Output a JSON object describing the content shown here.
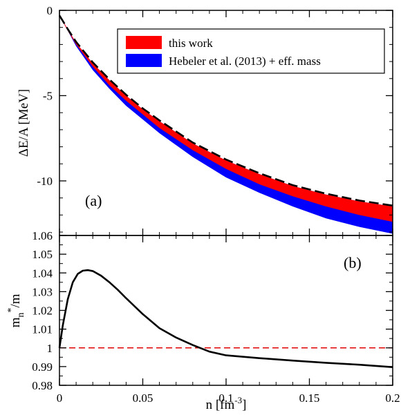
{
  "chart_data": [
    {
      "panel_label": "(a)",
      "type": "area",
      "ylabel": "ΔE/A [MeV]",
      "xlim": [
        0,
        0.2
      ],
      "ylim": [
        -13.2,
        0
      ],
      "yticks": [
        0,
        -5,
        -10
      ],
      "grid": false,
      "legend_position": "top-right",
      "legend": [
        {
          "name": "this work",
          "color": "#ff0000"
        },
        {
          "name": "Hebeler et al. (2013) + eff. mass",
          "color": "#0000ff"
        }
      ],
      "x": [
        0,
        0.005,
        0.01,
        0.02,
        0.03,
        0.04,
        0.05,
        0.06,
        0.08,
        0.1,
        0.12,
        0.14,
        0.16,
        0.18,
        0.2
      ],
      "series": [
        {
          "name": "this work",
          "kind": "band",
          "color": "#ff0000",
          "upper": [
            -0.3,
            -1.1,
            -1.9,
            -3.1,
            -4.1,
            -5.0,
            -5.8,
            -6.5,
            -7.8,
            -8.8,
            -9.6,
            -10.3,
            -10.8,
            -11.2,
            -11.5
          ],
          "lower": [
            -0.3,
            -1.2,
            -2.0,
            -3.3,
            -4.4,
            -5.3,
            -6.1,
            -6.9,
            -8.2,
            -9.3,
            -10.2,
            -10.9,
            -11.5,
            -12.0,
            -12.4
          ]
        },
        {
          "name": "Hebeler et al. (2013) + eff. mass",
          "kind": "band",
          "color": "#0000ff",
          "upper": [
            -0.3,
            -1.1,
            -1.9,
            -3.1,
            -4.1,
            -5.0,
            -5.8,
            -6.5,
            -7.8,
            -8.8,
            -9.6,
            -10.3,
            -10.8,
            -11.2,
            -11.5
          ],
          "lower": [
            -0.3,
            -1.2,
            -2.1,
            -3.5,
            -4.6,
            -5.6,
            -6.4,
            -7.2,
            -8.6,
            -9.8,
            -10.7,
            -11.5,
            -12.2,
            -12.7,
            -13.1
          ]
        },
        {
          "name": "dashed",
          "kind": "line",
          "color": "#000000",
          "dash": true,
          "values": [
            -0.3,
            -1.1,
            -1.85,
            -3.05,
            -4.05,
            -4.95,
            -5.75,
            -6.45,
            -7.75,
            -8.75,
            -9.55,
            -10.25,
            -10.75,
            -11.15,
            -11.45
          ]
        }
      ]
    },
    {
      "panel_label": "(b)",
      "type": "line",
      "ylabel": "mn*/m",
      "ylabel_parts": {
        "main": "m",
        "sub": "n",
        "sup": "*",
        "tail": "/m"
      },
      "xlabel": "n [fm-3]",
      "xlabel_parts": {
        "main": "n [fm",
        "sup": "-3",
        "tail": "]"
      },
      "xlim": [
        0,
        0.2
      ],
      "ylim": [
        0.98,
        1.06
      ],
      "xticks": [
        0,
        0.05,
        0.1,
        0.15,
        0.2
      ],
      "xtick_labels": [
        "0",
        "0.05",
        "0.1",
        "0.15",
        "0.2"
      ],
      "yticks": [
        0.98,
        0.99,
        1,
        1.01,
        1.02,
        1.03,
        1.04,
        1.05,
        1.06
      ],
      "ytick_labels": [
        "0.98",
        "0.99",
        "1",
        "1.01",
        "1.02",
        "1.03",
        "1.04",
        "1.05",
        "1.06"
      ],
      "grid": false,
      "series": [
        {
          "name": "effective mass",
          "kind": "line",
          "color": "#000000",
          "x": [
            0,
            0.002,
            0.005,
            0.008,
            0.011,
            0.014,
            0.017,
            0.02,
            0.025,
            0.03,
            0.035,
            0.04,
            0.05,
            0.06,
            0.07,
            0.08,
            0.09,
            0.1,
            0.12,
            0.14,
            0.16,
            0.18,
            0.2
          ],
          "values": [
            1.0,
            1.012,
            1.026,
            1.035,
            1.0395,
            1.0412,
            1.0415,
            1.041,
            1.0385,
            1.035,
            1.031,
            1.0265,
            1.018,
            1.0105,
            1.0055,
            1.0015,
            0.998,
            0.996,
            0.9945,
            0.9932,
            0.992,
            0.991,
            0.9897
          ]
        },
        {
          "name": "reference",
          "kind": "line",
          "color": "#e00000",
          "dash": true,
          "x": [
            0,
            0.2
          ],
          "values": [
            1,
            1
          ]
        }
      ]
    }
  ]
}
